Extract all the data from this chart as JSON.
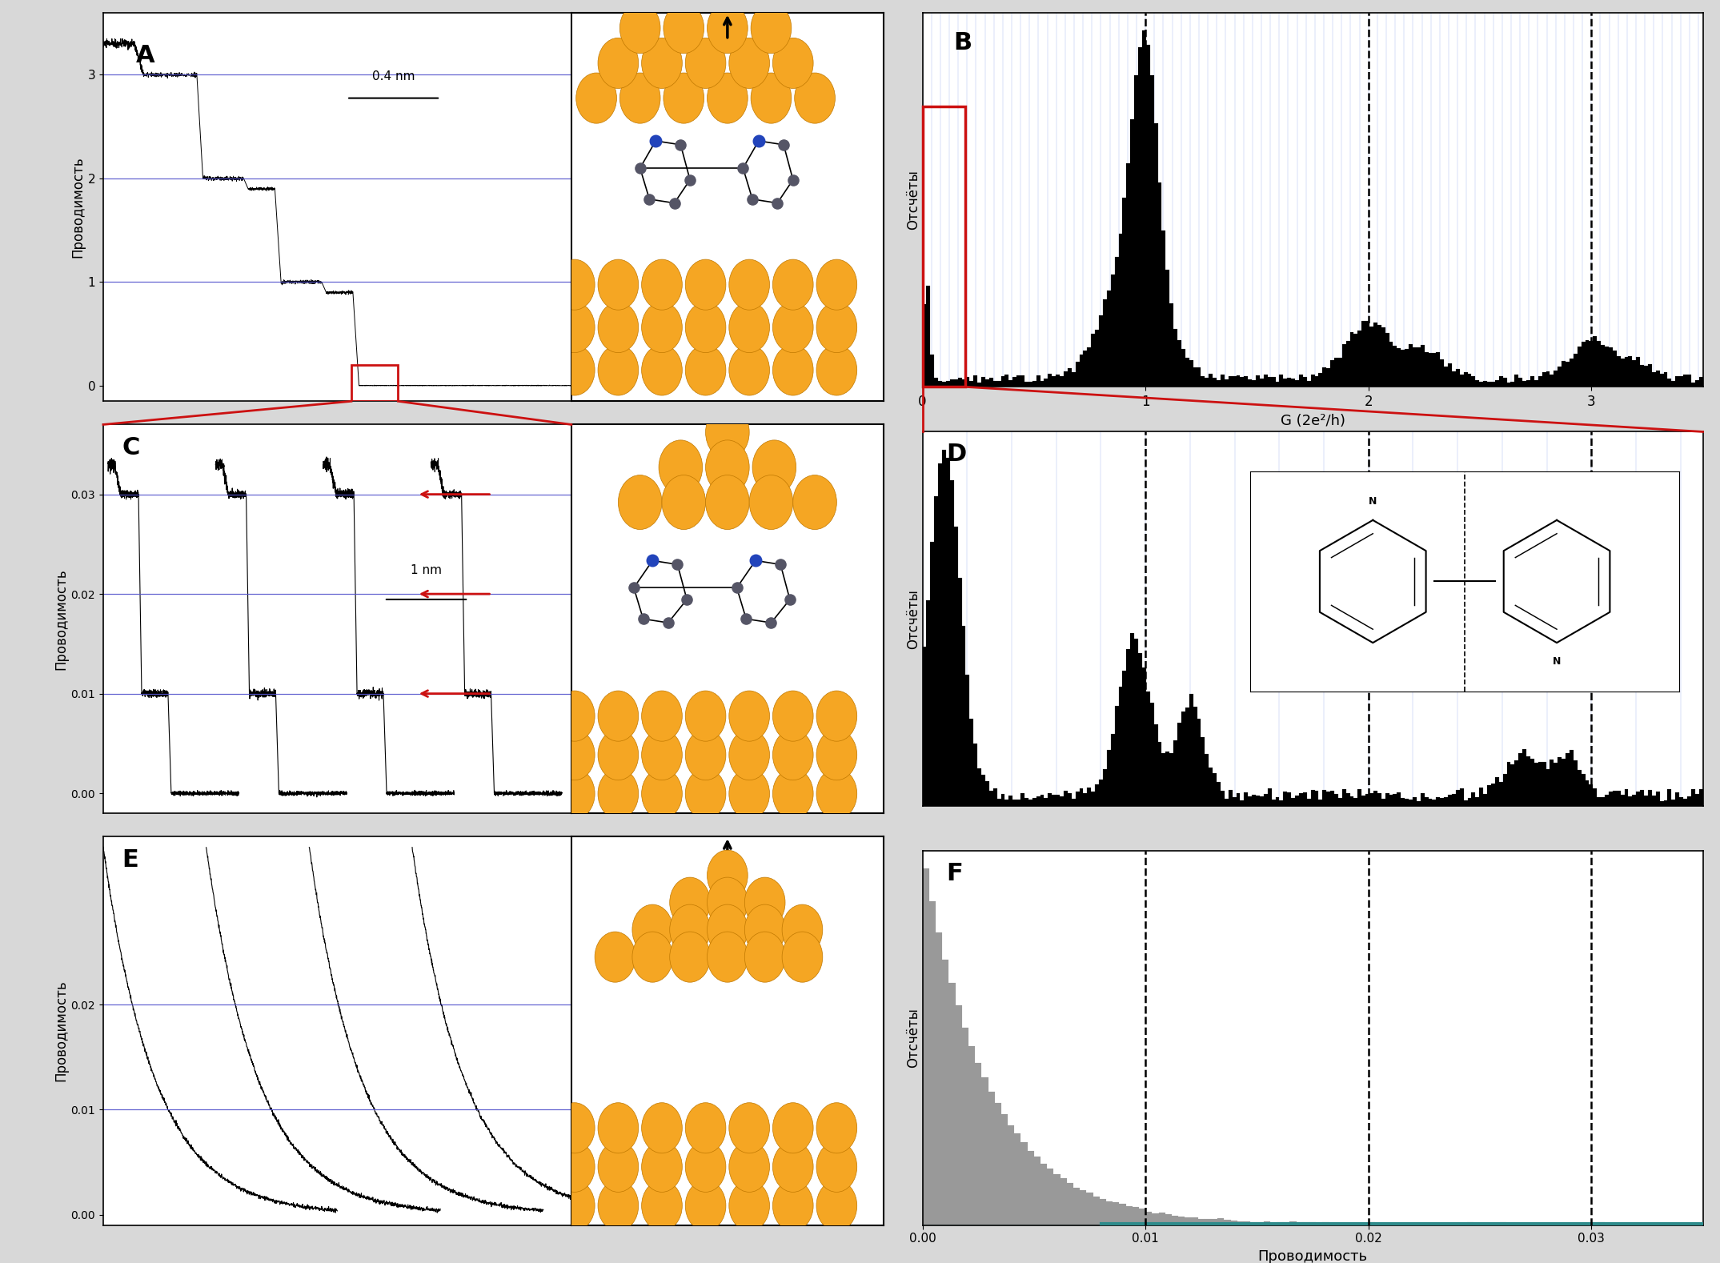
{
  "bg_color": "#d8d8d8",
  "panel_bg": "#ffffff",
  "ylabel_conductance": "Проводимость",
  "ylabel_counts": "Отсчёты",
  "xlabel_B": "G (2e²/h)",
  "xlabel_F": "Проводимость",
  "scale_A": "0.4 nm",
  "scale_C": "1 nm",
  "dashed_lines_B": [
    1.0,
    2.0,
    3.0
  ],
  "dashed_lines_D": [
    0.01,
    0.02,
    0.03
  ],
  "dashed_lines_F": [
    0.01,
    0.02,
    0.03
  ],
  "blue_lines_A": [
    1.0,
    2.0,
    3.0
  ],
  "blue_lines_C": [
    0.01,
    0.02,
    0.03
  ],
  "blue_lines_E": [
    0.01,
    0.02
  ],
  "gold_color": "#F5A623",
  "gold_edge": "#C07800",
  "red_color": "#CC1111",
  "teal_color": "#2E8B8B"
}
